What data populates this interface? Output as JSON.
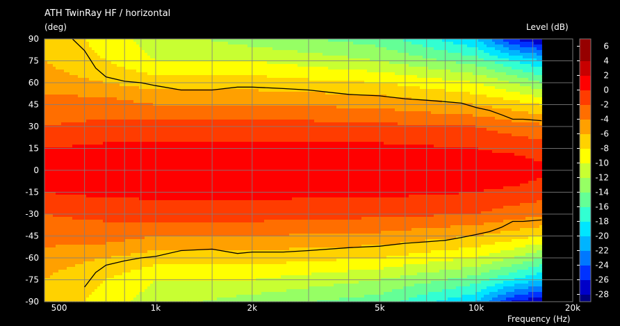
{
  "chart_data": {
    "type": "heatmap",
    "title": "ATH TwinRay HF / horizontal",
    "ylabel": "(deg)",
    "xlabel": "Frequency  (Hz)",
    "colorbar_label": "Level  (dB)",
    "x_scale": "log",
    "xlim": [
      450,
      20000
    ],
    "data_xmax": 16000,
    "ylim": [
      -90,
      90
    ],
    "x_ticks": [
      500,
      1000,
      2000,
      5000,
      10000,
      20000
    ],
    "x_tick_labels": [
      "500",
      "1k",
      "2k",
      "5k",
      "10k",
      "20k"
    ],
    "x_grid": [
      450,
      600,
      700,
      800,
      900,
      1000,
      1500,
      2000,
      3000,
      4000,
      5000,
      6000,
      7000,
      8000,
      9000,
      10000,
      15000
    ],
    "y_ticks": [
      90,
      75,
      60,
      45,
      30,
      15,
      0,
      -15,
      -30,
      -45,
      -60,
      -75,
      -90
    ],
    "y_tick_labels": [
      "90",
      "75",
      "60",
      "45",
      "30",
      "15",
      "0",
      "-15",
      "-30",
      "-45",
      "-60",
      "-75",
      "-90"
    ],
    "colorbar_ticks": [
      6,
      4,
      2,
      0,
      -2,
      -4,
      -6,
      -8,
      -10,
      -12,
      -14,
      -16,
      -18,
      -20,
      -22,
      -24,
      -26,
      -28
    ],
    "colorbar_tick_labels": [
      "6",
      "4",
      "2",
      "0",
      "-2",
      "-4",
      "-6",
      "-8",
      "-10",
      "-12",
      "-14",
      "-16",
      "-18",
      "-20",
      "-22",
      "-24",
      "-26",
      "-28"
    ],
    "colorbar_range": [
      -29,
      7
    ],
    "level_colors": [
      "#000080",
      "#0000c8",
      "#0032ff",
      "#0078ff",
      "#00b4ff",
      "#00e6ff",
      "#32ffd2",
      "#64ff96",
      "#96ff64",
      "#c8ff32",
      "#ffff00",
      "#ffd200",
      "#ffa000",
      "#ff6e00",
      "#ff3c00",
      "#ff0000",
      "#c80000",
      "#960000"
    ],
    "contour_level": -6,
    "contour_color": "#000000",
    "contour_upper": [
      {
        "f": 550,
        "deg": 90
      },
      {
        "f": 600,
        "deg": 82
      },
      {
        "f": 650,
        "deg": 70
      },
      {
        "f": 700,
        "deg": 64
      },
      {
        "f": 800,
        "deg": 61
      },
      {
        "f": 900,
        "deg": 60
      },
      {
        "f": 1000,
        "deg": 58
      },
      {
        "f": 1200,
        "deg": 55
      },
      {
        "f": 1500,
        "deg": 55
      },
      {
        "f": 1800,
        "deg": 57
      },
      {
        "f": 2000,
        "deg": 57
      },
      {
        "f": 2500,
        "deg": 56
      },
      {
        "f": 3000,
        "deg": 55
      },
      {
        "f": 4000,
        "deg": 52
      },
      {
        "f": 5000,
        "deg": 51
      },
      {
        "f": 6000,
        "deg": 49
      },
      {
        "f": 7000,
        "deg": 48
      },
      {
        "f": 8000,
        "deg": 47
      },
      {
        "f": 9000,
        "deg": 46
      },
      {
        "f": 10000,
        "deg": 43
      },
      {
        "f": 11000,
        "deg": 41
      },
      {
        "f": 12000,
        "deg": 38
      },
      {
        "f": 13000,
        "deg": 35
      },
      {
        "f": 14000,
        "deg": 35
      },
      {
        "f": 16000,
        "deg": 34
      }
    ],
    "contour_lower": [
      {
        "f": 600,
        "deg": -80
      },
      {
        "f": 650,
        "deg": -70
      },
      {
        "f": 700,
        "deg": -65
      },
      {
        "f": 800,
        "deg": -62
      },
      {
        "f": 900,
        "deg": -60
      },
      {
        "f": 1000,
        "deg": -59
      },
      {
        "f": 1200,
        "deg": -55
      },
      {
        "f": 1500,
        "deg": -54
      },
      {
        "f": 1800,
        "deg": -57
      },
      {
        "f": 2000,
        "deg": -56
      },
      {
        "f": 2500,
        "deg": -56
      },
      {
        "f": 3000,
        "deg": -55
      },
      {
        "f": 4000,
        "deg": -53
      },
      {
        "f": 5000,
        "deg": -52
      },
      {
        "f": 6000,
        "deg": -50
      },
      {
        "f": 7000,
        "deg": -49
      },
      {
        "f": 8000,
        "deg": -48
      },
      {
        "f": 9000,
        "deg": -46
      },
      {
        "f": 10000,
        "deg": -44
      },
      {
        "f": 11000,
        "deg": -42
      },
      {
        "f": 12000,
        "deg": -39
      },
      {
        "f": 13000,
        "deg": -35
      },
      {
        "f": 14000,
        "deg": -35
      },
      {
        "f": 16000,
        "deg": -34
      }
    ],
    "level_model": {
      "angle_nodes": [
        0,
        15,
        30,
        45,
        60,
        75,
        90
      ],
      "freq_nodes": [
        450,
        700,
        1000,
        2000,
        5000,
        10000,
        13000,
        16000
      ],
      "levels": [
        [
          1,
          1,
          1,
          1,
          1,
          1,
          1.5,
          0.5
        ],
        [
          0,
          0.5,
          0.5,
          0.5,
          0.5,
          0,
          -0.5,
          -1
        ],
        [
          -2,
          -1.5,
          -1,
          -1,
          -1.5,
          -2,
          -3,
          -3.5
        ],
        [
          -3,
          -3,
          -4,
          -4,
          -4.5,
          -6,
          -7,
          -8
        ],
        [
          -5,
          -6,
          -7,
          -7,
          -8,
          -10,
          -12,
          -14
        ],
        [
          -6,
          -8,
          -10,
          -10,
          -12,
          -15,
          -18,
          -20
        ],
        [
          -6,
          -9,
          -11,
          -13,
          -15,
          -20,
          -26,
          -28
        ]
      ]
    }
  }
}
